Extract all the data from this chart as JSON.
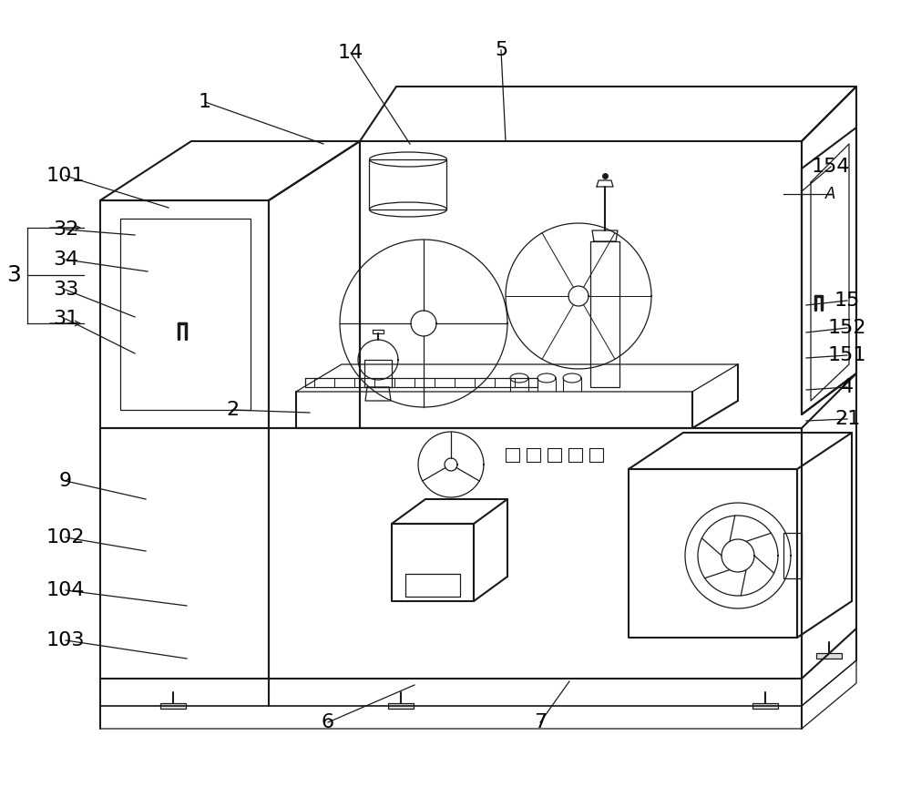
{
  "background_color": "#ffffff",
  "line_color": "#1a1a1a",
  "label_color": "#000000",
  "figsize": [
    10.0,
    8.75
  ],
  "dpi": 100
}
